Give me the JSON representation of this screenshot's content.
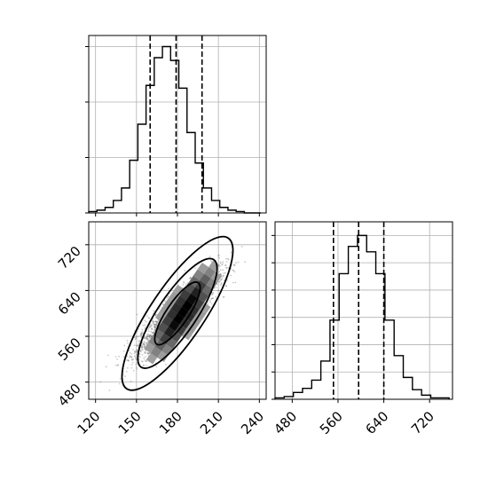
{
  "chart_data": [
    {
      "type": "histogram",
      "panel": "top-left marginal (parameter 1)",
      "grid": true,
      "x_range": [
        115,
        245
      ],
      "bin_edges": [
        115,
        121,
        127,
        133,
        139,
        145,
        151,
        157,
        163,
        169,
        175,
        181,
        187,
        193,
        199,
        205,
        211,
        217,
        223,
        229,
        235,
        241
      ],
      "counts": [
        1,
        2,
        4,
        9,
        18,
        38,
        64,
        92,
        112,
        120,
        110,
        90,
        58,
        36,
        18,
        9,
        4,
        2,
        1,
        0,
        0
      ],
      "y_range": [
        0,
        128
      ],
      "quantile_lines": [
        160,
        179,
        198
      ]
    },
    {
      "type": "scatter",
      "panel": "bottom-left 2D density (parameter 1 vs parameter 2)",
      "grid": true,
      "x_range": [
        115,
        245
      ],
      "y_range": [
        450,
        760
      ],
      "x_ticks": [
        "120",
        "150",
        "180",
        "210",
        "240"
      ],
      "y_ticks": [
        "480",
        "560",
        "640",
        "720"
      ],
      "distribution": {
        "center": [
          180,
          600
        ],
        "x_std": 15,
        "y_std": 37,
        "correlation": 0.88
      },
      "contour_levels": [
        "inner",
        "middle",
        "outer"
      ]
    },
    {
      "type": "histogram",
      "panel": "bottom-right marginal (parameter 2)",
      "grid": true,
      "x_range": [
        450,
        760
      ],
      "bin_edges": [
        450,
        466,
        482,
        498,
        514,
        530,
        546,
        562,
        578,
        594,
        610,
        626,
        642,
        658,
        674,
        690,
        706,
        722,
        738,
        754
      ],
      "counts": [
        1,
        2,
        5,
        8,
        14,
        28,
        58,
        92,
        112,
        120,
        108,
        92,
        58,
        32,
        16,
        7,
        3,
        1,
        1
      ],
      "y_range": [
        0,
        130
      ],
      "quantile_lines": [
        552,
        596,
        640
      ],
      "x_ticks": [
        "480",
        "560",
        "640",
        "720"
      ]
    }
  ]
}
